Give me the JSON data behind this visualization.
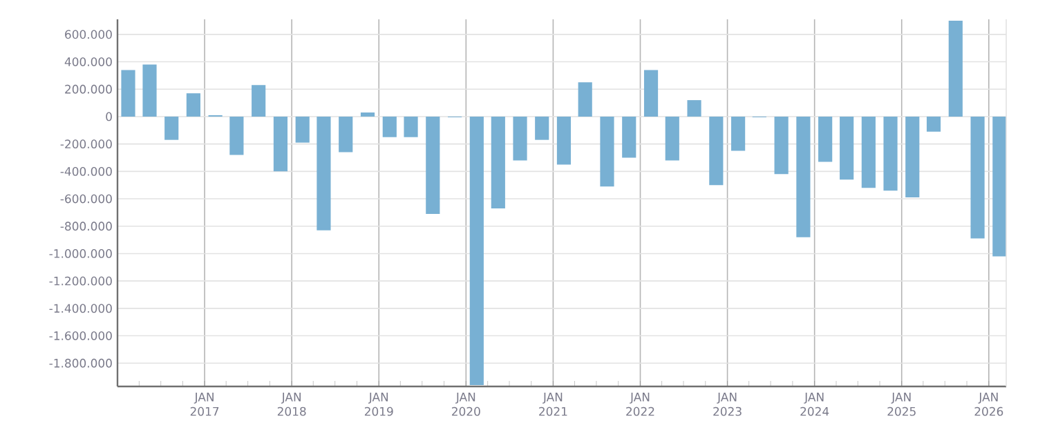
{
  "chart_data": {
    "type": "bar",
    "x": [
      "2016-02-15",
      "2016-05-15",
      "2016-08-15",
      "2016-11-15",
      "2017-02-15",
      "2017-05-15",
      "2017-08-15",
      "2017-11-15",
      "2018-02-15",
      "2018-05-15",
      "2018-08-15",
      "2018-11-15",
      "2019-02-15",
      "2019-05-15",
      "2019-08-15",
      "2019-11-15",
      "2020-02-15",
      "2020-05-15",
      "2020-08-15",
      "2020-11-15",
      "2021-02-15",
      "2021-05-15",
      "2021-08-15",
      "2021-11-15",
      "2022-02-15",
      "2022-05-15",
      "2022-08-15",
      "2022-11-15",
      "2023-02-15",
      "2023-05-15",
      "2023-08-15",
      "2023-11-15",
      "2024-02-15",
      "2024-05-15",
      "2024-08-15",
      "2024-11-15",
      "2025-02-15",
      "2025-05-15",
      "2025-08-15",
      "2025-11-15",
      "2026-02-15"
    ],
    "values": [
      340000,
      380000,
      -170000,
      170000,
      10000,
      -280000,
      230000,
      -400000,
      -190000,
      -830000,
      -260000,
      30000,
      -150000,
      -150000,
      -710000,
      -5000,
      -1960000,
      -670000,
      -320000,
      -170000,
      -350000,
      250000,
      -510000,
      -300000,
      340000,
      -320000,
      120000,
      -500000,
      -250000,
      -5000,
      -420000,
      -880000,
      -330000,
      -460000,
      -520000,
      -540000,
      -590000,
      -110000,
      700000,
      -890000,
      -1020000
    ],
    "color": "#78b0d3",
    "xlim": [
      "2016-01-01",
      "2026-03-15"
    ],
    "ylim": [
      -1970000,
      710000
    ],
    "xticks": [
      {
        "value": "2016-04-01",
        "label": null
      },
      {
        "value": "2016-07-01",
        "label": null
      },
      {
        "value": "2016-10-01",
        "label": null
      },
      {
        "value": "2017-01-01",
        "label": "JAN 2017"
      },
      {
        "value": "2017-04-01",
        "label": null
      },
      {
        "value": "2017-07-01",
        "label": null
      },
      {
        "value": "2017-10-01",
        "label": null
      },
      {
        "value": "2018-01-01",
        "label": "JAN 2018"
      },
      {
        "value": "2018-04-01",
        "label": null
      },
      {
        "value": "2018-07-01",
        "label": null
      },
      {
        "value": "2018-10-01",
        "label": null
      },
      {
        "value": "2019-01-01",
        "label": "JAN 2019"
      },
      {
        "value": "2019-04-01",
        "label": null
      },
      {
        "value": "2019-07-01",
        "label": null
      },
      {
        "value": "2019-10-01",
        "label": null
      },
      {
        "value": "2020-01-01",
        "label": "JAN 2020"
      },
      {
        "value": "2020-04-01",
        "label": null
      },
      {
        "value": "2020-07-01",
        "label": null
      },
      {
        "value": "2020-10-01",
        "label": null
      },
      {
        "value": "2021-01-01",
        "label": "JAN 2021"
      },
      {
        "value": "2021-04-01",
        "label": null
      },
      {
        "value": "2021-07-01",
        "label": null
      },
      {
        "value": "2021-10-01",
        "label": null
      },
      {
        "value": "2022-01-01",
        "label": "JAN 2022"
      },
      {
        "value": "2022-04-01",
        "label": null
      },
      {
        "value": "2022-07-01",
        "label": null
      },
      {
        "value": "2022-10-01",
        "label": null
      },
      {
        "value": "2023-01-01",
        "label": "JAN 2023"
      },
      {
        "value": "2023-04-01",
        "label": null
      },
      {
        "value": "2023-07-01",
        "label": null
      },
      {
        "value": "2023-10-01",
        "label": null
      },
      {
        "value": "2024-01-01",
        "label": "JAN 2024"
      },
      {
        "value": "2024-04-01",
        "label": null
      },
      {
        "value": "2024-07-01",
        "label": null
      },
      {
        "value": "2024-10-01",
        "label": null
      },
      {
        "value": "2025-01-01",
        "label": "JAN 2025"
      },
      {
        "value": "2025-04-01",
        "label": null
      },
      {
        "value": "2025-07-01",
        "label": null
      },
      {
        "value": "2025-10-01",
        "label": null
      },
      {
        "value": "2026-01-01",
        "label": "JAN 2026"
      }
    ],
    "yticks": [
      {
        "value": 600000,
        "label": "600.000"
      },
      {
        "value": 400000,
        "label": "400.000"
      },
      {
        "value": 200000,
        "label": "200.000"
      },
      {
        "value": 0,
        "label": "0"
      },
      {
        "value": -200000,
        "label": "-200.000"
      },
      {
        "value": -400000,
        "label": "-400.000"
      },
      {
        "value": -600000,
        "label": "-600.000"
      },
      {
        "value": -800000,
        "label": "-800.000"
      },
      {
        "value": -1000000,
        "label": "-1.000.000"
      },
      {
        "value": -1200000,
        "label": "-1.200.000"
      },
      {
        "value": -1400000,
        "label": "-1.400.000"
      },
      {
        "value": -1600000,
        "label": "-1.600.000"
      },
      {
        "value": -1800000,
        "label": "-1.800.000"
      }
    ],
    "grid": true
  }
}
